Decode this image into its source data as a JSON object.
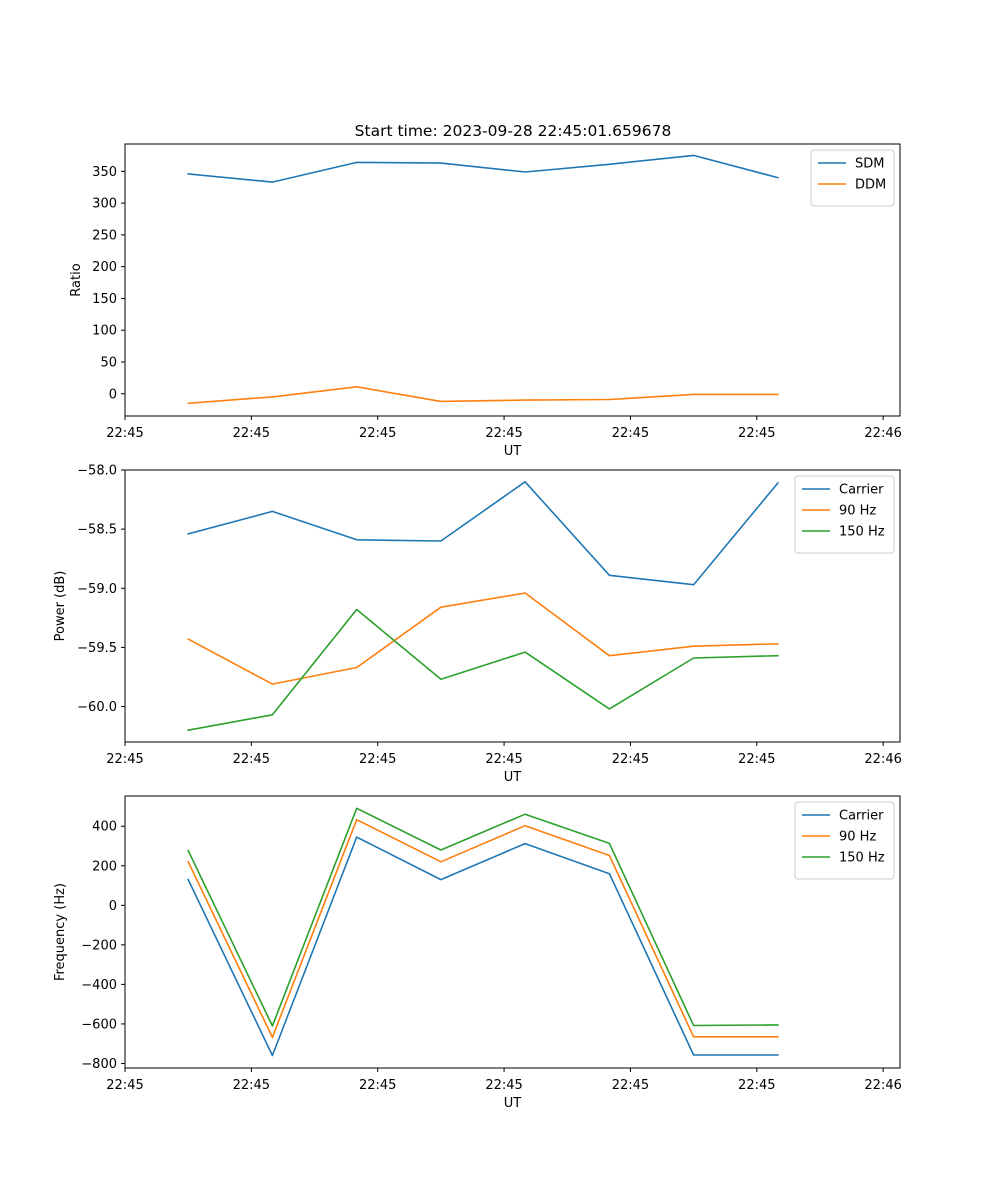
{
  "figure_title": "Start time: 2023-09-28 22:45:01.659678",
  "chart_data": [
    {
      "type": "line",
      "title": "Start time: 2023-09-28 22:45:01.659678",
      "xlabel": "UT",
      "ylabel": "Ratio",
      "x_tick_labels": [
        "22:45",
        "22:45",
        "22:45",
        "22:45",
        "22:45",
        "22:45",
        "22:46"
      ],
      "yticks": [
        0,
        50,
        100,
        150,
        200,
        250,
        300,
        350
      ],
      "ylim": [
        -35,
        393
      ],
      "xlim": [
        -0.75,
        8.45
      ],
      "legend_position": "top-right",
      "series": [
        {
          "name": "SDM",
          "color": "#1f77b4",
          "x": [
            0.0,
            1.0,
            2.0,
            3.0,
            4.0,
            5.0,
            6.0,
            7.0
          ],
          "values": [
            346,
            333,
            364,
            363,
            349,
            361,
            375,
            340
          ]
        },
        {
          "name": "DDM",
          "color": "#ff7f0e",
          "x": [
            0.0,
            1.0,
            2.0,
            3.0,
            4.0,
            5.0,
            6.0,
            7.0
          ],
          "values": [
            -15,
            -5,
            11,
            -12,
            -10,
            -9,
            -1,
            -1
          ]
        }
      ]
    },
    {
      "type": "line",
      "title": "",
      "xlabel": "UT",
      "ylabel": "Power (dB)",
      "x_tick_labels": [
        "22:45",
        "22:45",
        "22:45",
        "22:45",
        "22:45",
        "22:45",
        "22:46"
      ],
      "yticks": [
        -60.0,
        -59.5,
        -59.0,
        -58.5,
        -58.0
      ],
      "ytick_labels": [
        "−60.0",
        "−59.5",
        "−59.0",
        "−58.5",
        "−58.0"
      ],
      "ylim": [
        -60.3,
        -58.0
      ],
      "xlim": [
        -0.75,
        8.45
      ],
      "legend_position": "top-right",
      "series": [
        {
          "name": "Carrier",
          "color": "#1f77b4",
          "x": [
            0.0,
            1.0,
            2.0,
            3.0,
            4.0,
            5.0,
            6.0,
            7.0
          ],
          "values": [
            -58.54,
            -58.35,
            -58.59,
            -58.6,
            -58.1,
            -58.89,
            -58.97,
            -58.11
          ]
        },
        {
          "name": "90 Hz",
          "color": "#ff7f0e",
          "x": [
            0.0,
            1.0,
            2.0,
            3.0,
            4.0,
            5.0,
            6.0,
            7.0
          ],
          "values": [
            -59.43,
            -59.81,
            -59.67,
            -59.16,
            -59.04,
            -59.57,
            -59.49,
            -59.47
          ]
        },
        {
          "name": "150 Hz",
          "color": "#2ca02c",
          "x": [
            0.0,
            1.0,
            2.0,
            3.0,
            4.0,
            5.0,
            6.0,
            7.0
          ],
          "values": [
            -60.2,
            -60.07,
            -59.18,
            -59.77,
            -59.54,
            -60.02,
            -59.59,
            -59.57
          ]
        }
      ]
    },
    {
      "type": "line",
      "title": "",
      "xlabel": "UT",
      "ylabel": "Frequency (Hz)",
      "x_tick_labels": [
        "22:45",
        "22:45",
        "22:45",
        "22:45",
        "22:45",
        "22:45",
        "22:46"
      ],
      "yticks": [
        -800,
        -600,
        -400,
        -200,
        0,
        200,
        400
      ],
      "ytick_labels": [
        "−800",
        "−600",
        "−400",
        "−200",
        "0",
        "200",
        "400"
      ],
      "ylim": [
        -823,
        553
      ],
      "xlim": [
        -0.75,
        8.45
      ],
      "legend_position": "top-right",
      "series": [
        {
          "name": "Carrier",
          "color": "#1f77b4",
          "x": [
            0.0,
            1.0,
            2.0,
            3.0,
            4.0,
            5.0,
            6.0,
            7.0
          ],
          "values": [
            130,
            -760,
            345,
            130,
            312,
            160,
            -757,
            -757
          ]
        },
        {
          "name": "90 Hz",
          "color": "#ff7f0e",
          "x": [
            0.0,
            1.0,
            2.0,
            3.0,
            4.0,
            5.0,
            6.0,
            7.0
          ],
          "values": [
            220,
            -668,
            433,
            220,
            403,
            252,
            -665,
            -665
          ]
        },
        {
          "name": "150 Hz",
          "color": "#2ca02c",
          "x": [
            0.0,
            1.0,
            2.0,
            3.0,
            4.0,
            5.0,
            6.0,
            7.0
          ],
          "values": [
            277,
            -610,
            491,
            280,
            461,
            313,
            -608,
            -605
          ]
        }
      ]
    }
  ]
}
